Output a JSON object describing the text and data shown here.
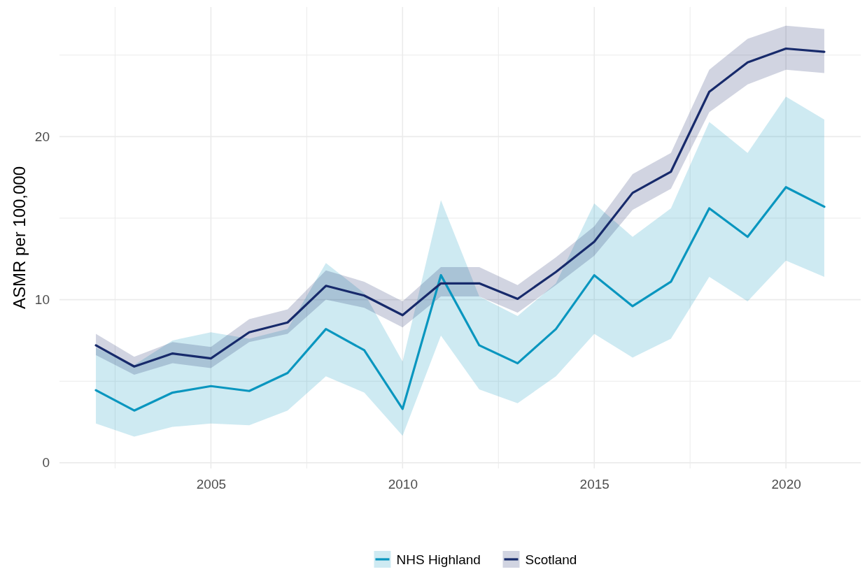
{
  "chart_data": {
    "type": "line",
    "ylabel": "ASMR per 100,000",
    "x": [
      2002,
      2003,
      2004,
      2005,
      2006,
      2007,
      2008,
      2009,
      2010,
      2011,
      2012,
      2013,
      2014,
      2015,
      2016,
      2017,
      2018,
      2019,
      2020,
      2021
    ],
    "xlim": [
      2001.05,
      2021.95
    ],
    "xticks": [
      {
        "value": 2002.5,
        "label": null
      },
      2005,
      {
        "value": 2007.5,
        "label": null
      },
      2010,
      {
        "value": 2012.5,
        "label": null
      },
      2015,
      {
        "value": 2017.5,
        "label": null
      },
      2020
    ],
    "ylim": [
      -0.35,
      27.95
    ],
    "yticks": [
      0,
      {
        "value": 5,
        "label": null
      },
      10,
      {
        "value": 15,
        "label": null
      },
      20,
      {
        "value": 25,
        "label": null
      }
    ],
    "grid": true,
    "legend": "bottom",
    "series": [
      {
        "name": "NHS Highland",
        "color": "#0a96bf",
        "values": [
          4.45,
          3.2,
          4.3,
          4.7,
          4.4,
          5.5,
          8.2,
          6.9,
          3.3,
          11.5,
          7.2,
          6.1,
          8.2,
          11.5,
          9.6,
          11.1,
          15.6,
          13.85,
          16.9,
          15.7
        ],
        "lower": [
          2.4,
          1.6,
          2.2,
          2.4,
          2.3,
          3.2,
          5.3,
          4.3,
          1.65,
          7.8,
          4.5,
          3.65,
          5.3,
          7.9,
          6.45,
          7.6,
          11.4,
          9.9,
          12.4,
          11.4
        ],
        "upper": [
          7.05,
          6.0,
          7.5,
          8.0,
          7.6,
          8.2,
          12.25,
          10.4,
          6.2,
          16.1,
          10.2,
          9.0,
          11.0,
          15.9,
          13.85,
          15.6,
          20.9,
          19.0,
          22.45,
          21.05
        ]
      },
      {
        "name": "Scotland",
        "color": "#172a6b",
        "values": [
          7.2,
          5.9,
          6.7,
          6.4,
          8.0,
          8.6,
          10.85,
          10.25,
          9.05,
          11.0,
          11.0,
          10.05,
          11.7,
          13.55,
          16.55,
          17.85,
          22.75,
          24.55,
          25.4,
          25.2
        ],
        "lower": [
          6.6,
          5.4,
          6.1,
          5.8,
          7.4,
          7.9,
          10.0,
          9.5,
          8.3,
          10.2,
          10.2,
          9.2,
          10.9,
          12.7,
          15.5,
          16.8,
          21.5,
          23.2,
          24.1,
          23.9
        ],
        "upper": [
          7.9,
          6.5,
          7.4,
          7.1,
          8.8,
          9.4,
          11.8,
          11.1,
          9.9,
          12.0,
          12.0,
          10.9,
          12.6,
          14.5,
          17.7,
          19.0,
          24.1,
          26.0,
          26.8,
          26.6
        ]
      }
    ]
  }
}
